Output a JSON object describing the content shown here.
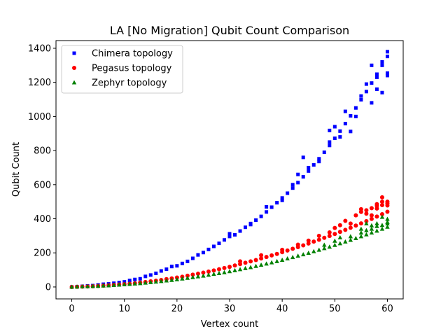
{
  "chart_data": {
    "type": "scatter",
    "title": "LA [No Migration] Qubit Count Comparison",
    "xlabel": "Vertex count",
    "ylabel": "Qubit Count",
    "xlim": [
      -3,
      63
    ],
    "ylim": [
      -70,
      1445
    ],
    "xticks": [
      0,
      10,
      20,
      30,
      40,
      50,
      60
    ],
    "yticks": [
      0,
      200,
      400,
      600,
      800,
      1000,
      1200,
      1400
    ],
    "grid": false,
    "legend_position": "top-left",
    "series": [
      {
        "name": "Chimera topology",
        "marker": "square",
        "color": "#0000ff",
        "points": [
          [
            0,
            0
          ],
          [
            1,
            2
          ],
          [
            2,
            4
          ],
          [
            3,
            6
          ],
          [
            4,
            8
          ],
          [
            5,
            12
          ],
          [
            6,
            16
          ],
          [
            7,
            18
          ],
          [
            8,
            22
          ],
          [
            9,
            26
          ],
          [
            10,
            30
          ],
          [
            11,
            38
          ],
          [
            12,
            44
          ],
          [
            13,
            48
          ],
          [
            14,
            62
          ],
          [
            15,
            70
          ],
          [
            16,
            80
          ],
          [
            17,
            94
          ],
          [
            18,
            104
          ],
          [
            19,
            120
          ],
          [
            20,
            124
          ],
          [
            21,
            138
          ],
          [
            22,
            150
          ],
          [
            23,
            168
          ],
          [
            24,
            188
          ],
          [
            25,
            202
          ],
          [
            26,
            220
          ],
          [
            27,
            238
          ],
          [
            28,
            256
          ],
          [
            29,
            276
          ],
          [
            30,
            296
          ],
          [
            31,
            306
          ],
          [
            32,
            328
          ],
          [
            33,
            350
          ],
          [
            34,
            372
          ],
          [
            35,
            392
          ],
          [
            36,
            414
          ],
          [
            37,
            440
          ],
          [
            38,
            468
          ],
          [
            39,
            494
          ],
          [
            40,
            522
          ],
          [
            41,
            550
          ],
          [
            42,
            580
          ],
          [
            43,
            612
          ],
          [
            44,
            646
          ],
          [
            45,
            680
          ],
          [
            46,
            716
          ],
          [
            47,
            752
          ],
          [
            48,
            790
          ],
          [
            49,
            830
          ],
          [
            50,
            872
          ],
          [
            51,
            914
          ],
          [
            52,
            958
          ],
          [
            53,
            1004
          ],
          [
            54,
            1050
          ],
          [
            55,
            1098
          ],
          [
            56,
            1146
          ],
          [
            57,
            1196
          ],
          [
            58,
            1248
          ],
          [
            59,
            1300
          ],
          [
            60,
            1352
          ],
          [
            30,
            312
          ],
          [
            34,
            366
          ],
          [
            37,
            470
          ],
          [
            40,
            508
          ],
          [
            42,
            600
          ],
          [
            43,
            660
          ],
          [
            44,
            760
          ],
          [
            45,
            700
          ],
          [
            47,
            736
          ],
          [
            49,
            850
          ],
          [
            49,
            918
          ],
          [
            50,
            940
          ],
          [
            51,
            880
          ],
          [
            52,
            1030
          ],
          [
            53,
            912
          ],
          [
            54,
            1000
          ],
          [
            55,
            1120
          ],
          [
            56,
            1190
          ],
          [
            57,
            1080
          ],
          [
            57,
            1300
          ],
          [
            58,
            1160
          ],
          [
            58,
            1230
          ],
          [
            59,
            1140
          ],
          [
            59,
            1320
          ],
          [
            60,
            1240
          ],
          [
            60,
            1380
          ],
          [
            60,
            1254
          ]
        ]
      },
      {
        "name": "Pegasus topology",
        "marker": "circle",
        "color": "#ff0000",
        "points": [
          [
            0,
            0
          ],
          [
            1,
            1
          ],
          [
            2,
            2
          ],
          [
            3,
            3
          ],
          [
            4,
            4
          ],
          [
            5,
            6
          ],
          [
            6,
            8
          ],
          [
            7,
            10
          ],
          [
            8,
            12
          ],
          [
            9,
            14
          ],
          [
            10,
            16
          ],
          [
            11,
            19
          ],
          [
            12,
            22
          ],
          [
            13,
            26
          ],
          [
            14,
            29
          ],
          [
            15,
            33
          ],
          [
            16,
            37
          ],
          [
            17,
            41
          ],
          [
            18,
            46
          ],
          [
            19,
            50
          ],
          [
            20,
            55
          ],
          [
            21,
            60
          ],
          [
            22,
            66
          ],
          [
            23,
            72
          ],
          [
            24,
            78
          ],
          [
            25,
            84
          ],
          [
            26,
            90
          ],
          [
            27,
            97
          ],
          [
            28,
            104
          ],
          [
            29,
            111
          ],
          [
            30,
            118
          ],
          [
            31,
            126
          ],
          [
            32,
            134
          ],
          [
            33,
            142
          ],
          [
            34,
            150
          ],
          [
            35,
            158
          ],
          [
            36,
            167
          ],
          [
            37,
            176
          ],
          [
            38,
            185
          ],
          [
            39,
            194
          ],
          [
            40,
            204
          ],
          [
            41,
            214
          ],
          [
            42,
            224
          ],
          [
            43,
            234
          ],
          [
            44,
            244
          ],
          [
            45,
            255
          ],
          [
            46,
            266
          ],
          [
            47,
            277
          ],
          [
            48,
            288
          ],
          [
            49,
            299
          ],
          [
            50,
            311
          ],
          [
            51,
            323
          ],
          [
            52,
            335
          ],
          [
            53,
            347
          ],
          [
            54,
            360
          ],
          [
            55,
            373
          ],
          [
            56,
            386
          ],
          [
            57,
            399
          ],
          [
            58,
            413
          ],
          [
            59,
            427
          ],
          [
            60,
            441
          ],
          [
            32,
            150
          ],
          [
            36,
            186
          ],
          [
            40,
            218
          ],
          [
            43,
            248
          ],
          [
            45,
            272
          ],
          [
            47,
            300
          ],
          [
            49,
            320
          ],
          [
            50,
            346
          ],
          [
            51,
            362
          ],
          [
            52,
            388
          ],
          [
            53,
            372
          ],
          [
            54,
            420
          ],
          [
            55,
            456
          ],
          [
            55,
            440
          ],
          [
            56,
            430
          ],
          [
            56,
            450
          ],
          [
            57,
            462
          ],
          [
            57,
            420
          ],
          [
            58,
            476
          ],
          [
            58,
            486
          ],
          [
            58,
            460
          ],
          [
            59,
            500
          ],
          [
            59,
            480
          ],
          [
            59,
            526
          ],
          [
            60,
            490
          ],
          [
            60,
            500
          ],
          [
            60,
            478
          ]
        ]
      },
      {
        "name": "Zephyr topology",
        "marker": "triangle",
        "color": "#008000",
        "points": [
          [
            0,
            0
          ],
          [
            1,
            1
          ],
          [
            2,
            2
          ],
          [
            3,
            3
          ],
          [
            4,
            4
          ],
          [
            5,
            5
          ],
          [
            6,
            7
          ],
          [
            7,
            8
          ],
          [
            8,
            10
          ],
          [
            9,
            12
          ],
          [
            10,
            14
          ],
          [
            11,
            16
          ],
          [
            12,
            19
          ],
          [
            13,
            21
          ],
          [
            14,
            24
          ],
          [
            15,
            27
          ],
          [
            16,
            30
          ],
          [
            17,
            33
          ],
          [
            18,
            37
          ],
          [
            19,
            40
          ],
          [
            20,
            44
          ],
          [
            21,
            48
          ],
          [
            22,
            52
          ],
          [
            23,
            56
          ],
          [
            24,
            61
          ],
          [
            25,
            65
          ],
          [
            26,
            70
          ],
          [
            27,
            75
          ],
          [
            28,
            80
          ],
          [
            29,
            85
          ],
          [
            30,
            91
          ],
          [
            31,
            97
          ],
          [
            32,
            103
          ],
          [
            33,
            109
          ],
          [
            34,
            115
          ],
          [
            35,
            122
          ],
          [
            36,
            129
          ],
          [
            37,
            136
          ],
          [
            38,
            143
          ],
          [
            39,
            150
          ],
          [
            40,
            158
          ],
          [
            41,
            166
          ],
          [
            42,
            174
          ],
          [
            43,
            182
          ],
          [
            44,
            190
          ],
          [
            45,
            199
          ],
          [
            46,
            208
          ],
          [
            47,
            217
          ],
          [
            48,
            226
          ],
          [
            49,
            235
          ],
          [
            50,
            245
          ],
          [
            51,
            255
          ],
          [
            52,
            265
          ],
          [
            53,
            275
          ],
          [
            54,
            285
          ],
          [
            55,
            296
          ],
          [
            56,
            307
          ],
          [
            57,
            318
          ],
          [
            58,
            329
          ],
          [
            59,
            340
          ],
          [
            60,
            352
          ],
          [
            48,
            246
          ],
          [
            50,
            270
          ],
          [
            51,
            290
          ],
          [
            53,
            296
          ],
          [
            55,
            318
          ],
          [
            55,
            340
          ],
          [
            56,
            332
          ],
          [
            56,
            372
          ],
          [
            57,
            360
          ],
          [
            57,
            340
          ],
          [
            58,
            372
          ],
          [
            58,
            356
          ],
          [
            59,
            362
          ],
          [
            59,
            410
          ],
          [
            60,
            372
          ],
          [
            60,
            380
          ],
          [
            60,
            398
          ]
        ]
      }
    ]
  }
}
